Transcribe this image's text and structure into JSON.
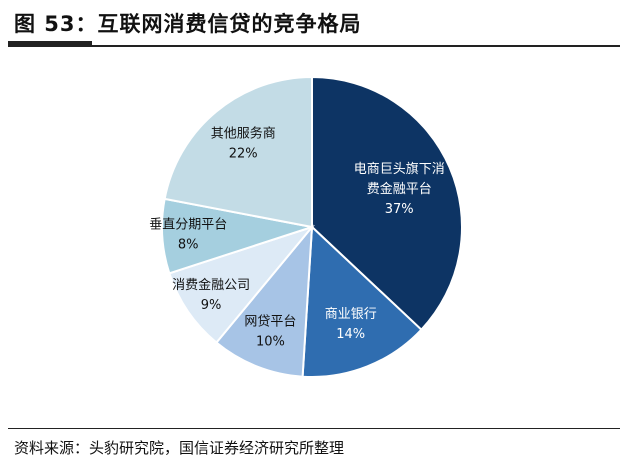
{
  "figure": {
    "title": "图 53：互联网消费信贷的竞争格局",
    "source": "资料来源：头豹研究院，国信证券经济研究所整理"
  },
  "chart_data": {
    "type": "pie",
    "title": "",
    "start_angle_deg": 0,
    "direction": "clockwise",
    "slices": [
      {
        "name": "电商巨头旗下消费金融平台",
        "label_lines": [
          "电商巨头旗下消",
          "费金融平台"
        ],
        "value": 37,
        "value_label": "37%",
        "color": "#0d3464",
        "text_color": "#ffffff"
      },
      {
        "name": "商业银行",
        "label_lines": [
          "商业银行"
        ],
        "value": 14,
        "value_label": "14%",
        "color": "#2f6db0",
        "text_color": "#ffffff"
      },
      {
        "name": "网贷平台",
        "label_lines": [
          "网贷平台"
        ],
        "value": 10,
        "value_label": "10%",
        "color": "#a7c4e6",
        "text_color": "#111111"
      },
      {
        "name": "消费金融公司",
        "label_lines": [
          "消费金融公司"
        ],
        "value": 9,
        "value_label": "9%",
        "color": "#ddeaf6",
        "text_color": "#111111"
      },
      {
        "name": "垂直分期平台",
        "label_lines": [
          "垂直分期平台"
        ],
        "value": 8,
        "value_label": "8%",
        "color": "#a5cfdf",
        "text_color": "#111111"
      },
      {
        "name": "其他服务商",
        "label_lines": [
          "其他服务商"
        ],
        "value": 22,
        "value_label": "22%",
        "color": "#c3dce6",
        "text_color": "#111111"
      }
    ]
  }
}
